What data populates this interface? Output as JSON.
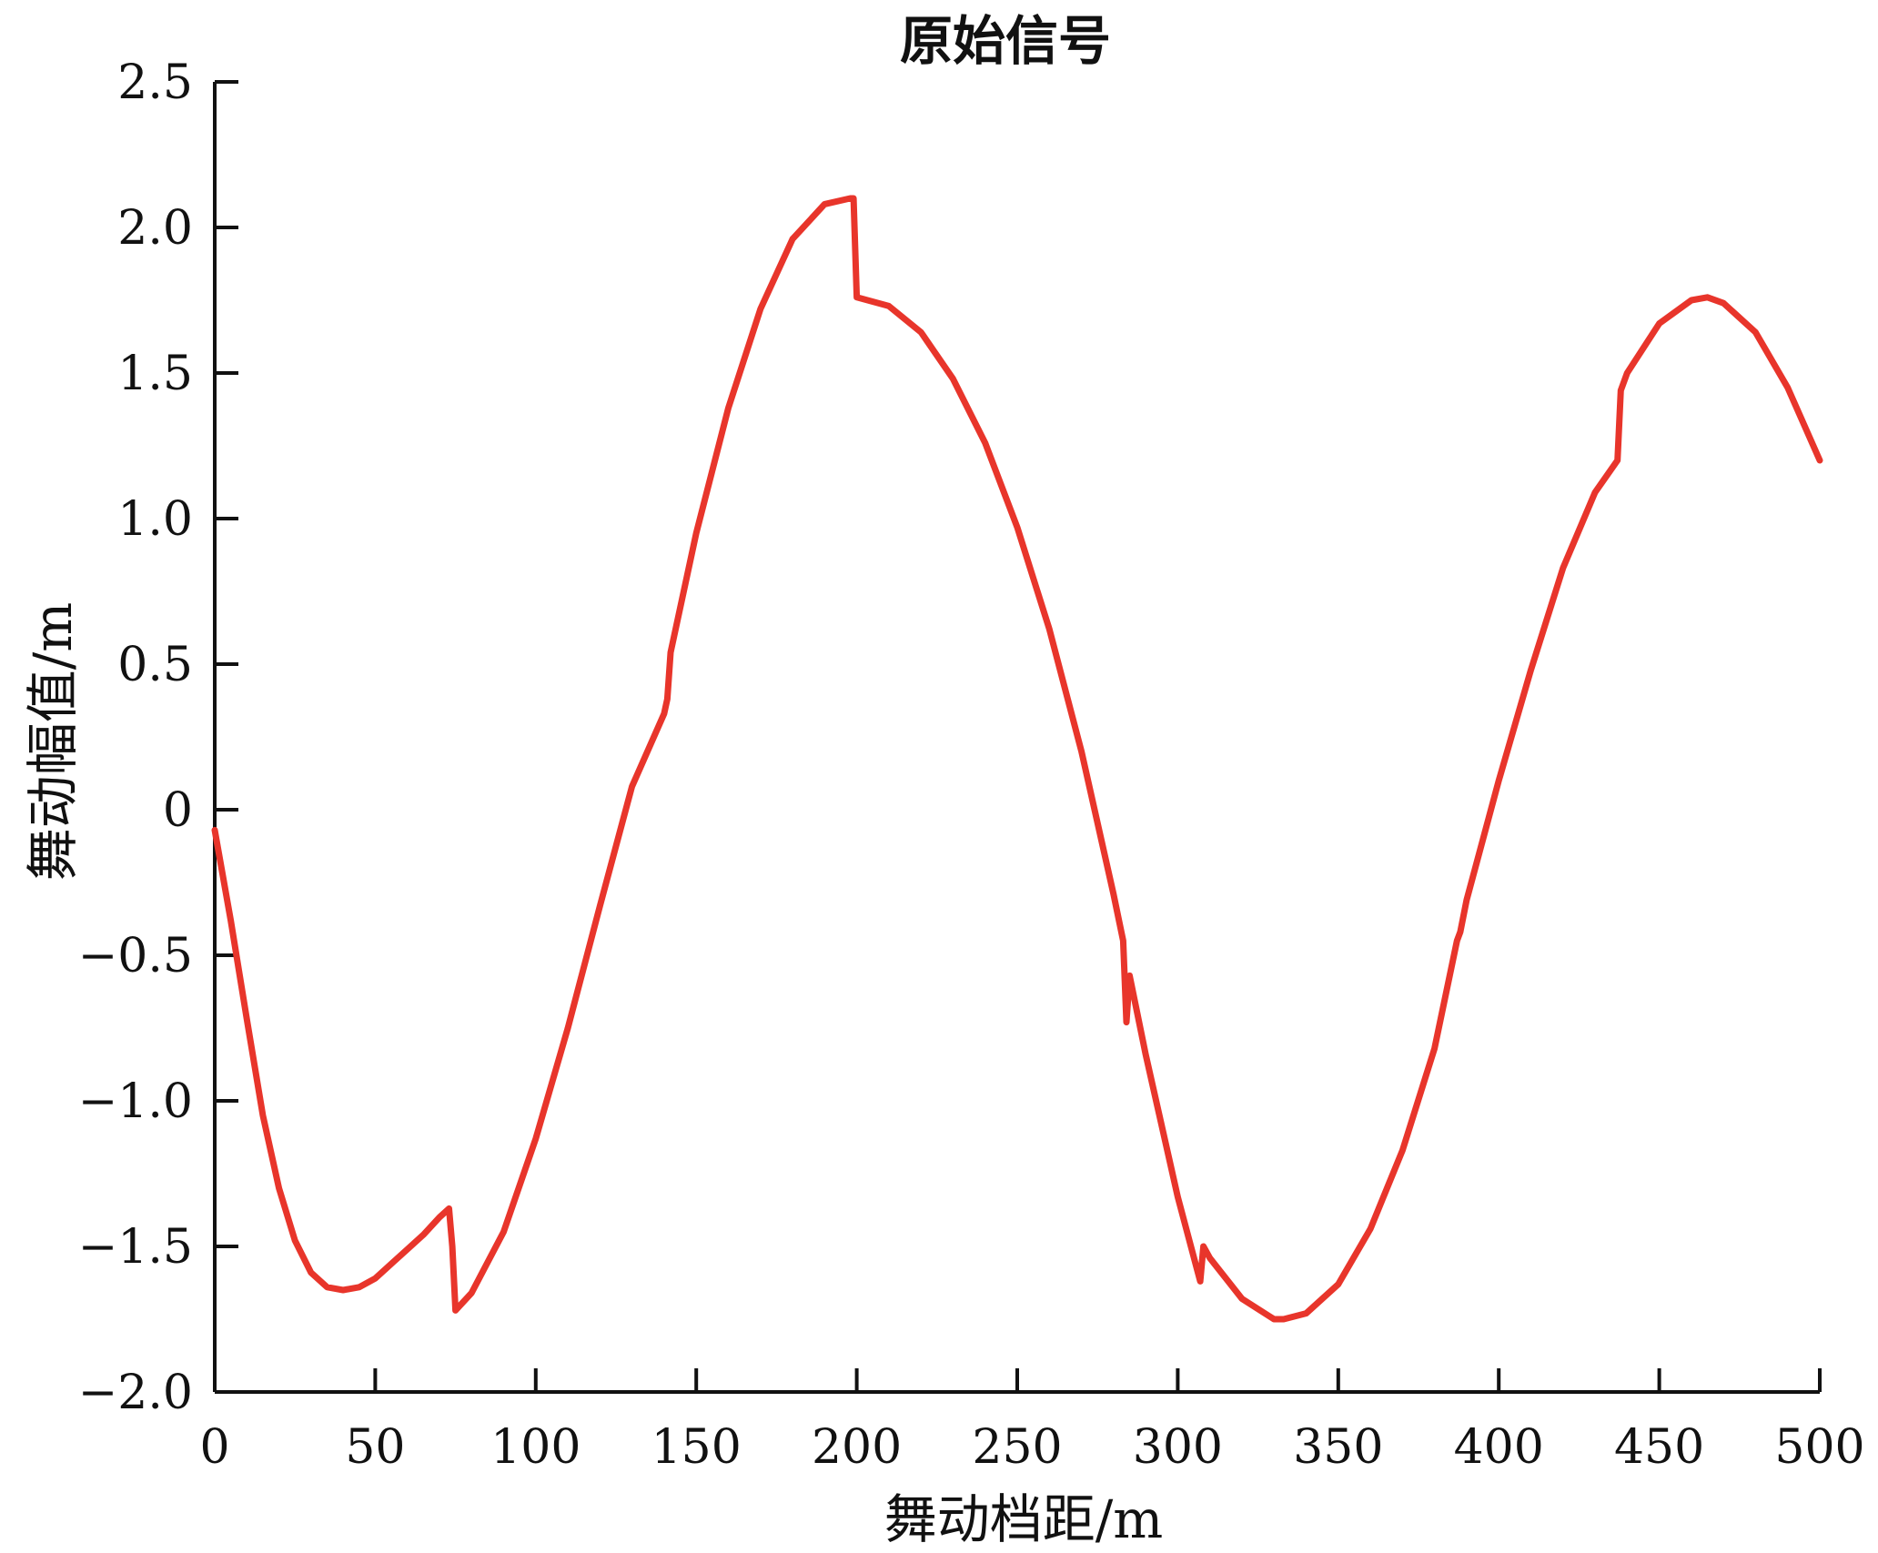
{
  "chart_data": {
    "type": "line",
    "title": "原始信号",
    "xlabel": "舞动档距/m",
    "ylabel": "舞动幅值/m",
    "xlim": [
      0,
      500
    ],
    "ylim": [
      -2.0,
      2.5
    ],
    "x_ticks": [
      0,
      50,
      100,
      150,
      200,
      250,
      300,
      350,
      400,
      450,
      500
    ],
    "x_tick_labels": [
      "0",
      "50",
      "100",
      "150",
      "200",
      "250",
      "300",
      "350",
      "400",
      "450",
      "500"
    ],
    "y_ticks": [
      2.5,
      2.0,
      1.5,
      1.0,
      0.5,
      0,
      -0.5,
      -1.0,
      -1.5,
      -2.0
    ],
    "y_tick_labels": [
      "2.5",
      "2.0",
      "1.5",
      "1.0",
      "0.5",
      "0",
      "−0.5",
      "−1.0",
      "−1.5",
      "−2.0"
    ],
    "grid": false,
    "legend": "none",
    "series": [
      {
        "color": "#e8352b",
        "x": [
          0,
          5,
          10,
          15,
          20,
          25,
          30,
          35,
          40,
          45,
          50,
          55,
          60,
          65,
          70,
          73,
          74,
          75,
          80,
          90,
          100,
          110,
          120,
          130,
          140,
          141,
          142,
          150,
          160,
          170,
          180,
          190,
          198,
          199,
          200,
          210,
          220,
          230,
          240,
          250,
          260,
          270,
          280,
          283,
          284,
          285,
          290,
          300,
          307,
          308,
          310,
          320,
          330,
          333,
          340,
          350,
          360,
          370,
          380,
          387,
          388,
          390,
          400,
          410,
          420,
          430,
          437,
          438,
          440,
          450,
          460,
          465,
          470,
          480,
          490,
          500
        ],
        "y": [
          -0.07,
          -0.38,
          -0.72,
          -1.05,
          -1.3,
          -1.48,
          -1.59,
          -1.64,
          -1.65,
          -1.64,
          -1.61,
          -1.56,
          -1.51,
          -1.46,
          -1.4,
          -1.37,
          -1.5,
          -1.72,
          -1.66,
          -1.45,
          -1.13,
          -0.75,
          -0.33,
          0.08,
          0.33,
          0.38,
          0.54,
          0.95,
          1.38,
          1.72,
          1.96,
          2.08,
          2.1,
          2.1,
          1.76,
          1.73,
          1.64,
          1.48,
          1.26,
          0.97,
          0.62,
          0.2,
          -0.29,
          -0.45,
          -0.73,
          -0.57,
          -0.84,
          -1.33,
          -1.62,
          -1.5,
          -1.54,
          -1.68,
          -1.75,
          -1.75,
          -1.73,
          -1.63,
          -1.44,
          -1.17,
          -0.82,
          -0.45,
          -0.42,
          -0.31,
          0.1,
          0.48,
          0.83,
          1.09,
          1.2,
          1.44,
          1.5,
          1.67,
          1.75,
          1.76,
          1.74,
          1.64,
          1.45,
          1.2
        ]
      }
    ]
  }
}
